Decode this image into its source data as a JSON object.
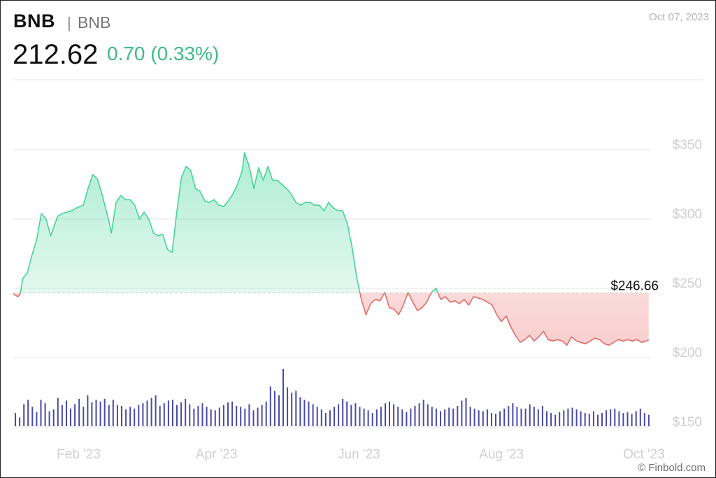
{
  "header": {
    "symbol": "BNB",
    "separator": "|",
    "name": "BNB",
    "date": "Oct 07, 2023",
    "price": "212.62",
    "change": "0.70 (0.33%)"
  },
  "credit": "© Finbold.com",
  "chart_data": {
    "type": "area",
    "reference": {
      "value": 246.66,
      "label": "$246.66"
    },
    "y_ticks": [
      {
        "value": 350,
        "label": "$350"
      },
      {
        "value": 300,
        "label": "$300"
      },
      {
        "value": 250,
        "label": "$250"
      },
      {
        "value": 200,
        "label": "$200"
      },
      {
        "value": 150,
        "label": "$150"
      }
    ],
    "x_ticks": [
      {
        "date": "2023-02-05",
        "label": "Feb '23"
      },
      {
        "date": "2023-04-05",
        "label": "Apr '23"
      },
      {
        "date": "2023-06-05",
        "label": "Jun '23"
      },
      {
        "date": "2023-08-05",
        "label": "Aug '23"
      },
      {
        "date": "2023-10-05",
        "label": "Oct '23"
      }
    ],
    "ylim": [
      145,
      365
    ],
    "xlim": [
      "2023-01-08",
      "2023-10-08"
    ],
    "grid": true,
    "colors": {
      "up_line": "#46d49a",
      "up_fill": "#3fd396",
      "down_line": "#e36b6b",
      "down_fill": "#f08080",
      "volume": "#4a4aa6",
      "grid": "#e6e6e6",
      "tick": "#cfcfcf"
    },
    "series": [
      {
        "values": [
          [
            "2023-01-08",
            246
          ],
          [
            "2023-01-10",
            244
          ],
          [
            "2023-01-11",
            246
          ],
          [
            "2023-01-12",
            257
          ],
          [
            "2023-01-14",
            261
          ],
          [
            "2023-01-16",
            274
          ],
          [
            "2023-01-18",
            285
          ],
          [
            "2023-01-20",
            304
          ],
          [
            "2023-01-22",
            300
          ],
          [
            "2023-01-24",
            288
          ],
          [
            "2023-01-27",
            302
          ],
          [
            "2023-01-29",
            304
          ],
          [
            "2023-02-02",
            306
          ],
          [
            "2023-02-04",
            308
          ],
          [
            "2023-02-07",
            310
          ],
          [
            "2023-02-09",
            322
          ],
          [
            "2023-02-11",
            332
          ],
          [
            "2023-02-13",
            329
          ],
          [
            "2023-02-15",
            318
          ],
          [
            "2023-02-18",
            298
          ],
          [
            "2023-02-19",
            290
          ],
          [
            "2023-02-21",
            312
          ],
          [
            "2023-02-23",
            317
          ],
          [
            "2023-02-25",
            314
          ],
          [
            "2023-02-27",
            314
          ],
          [
            "2023-03-01",
            310
          ],
          [
            "2023-03-03",
            300
          ],
          [
            "2023-03-05",
            305
          ],
          [
            "2023-03-07",
            300
          ],
          [
            "2023-03-09",
            290
          ],
          [
            "2023-03-11",
            288
          ],
          [
            "2023-03-13",
            289
          ],
          [
            "2023-03-15",
            278
          ],
          [
            "2023-03-17",
            276
          ],
          [
            "2023-03-19",
            305
          ],
          [
            "2023-03-21",
            330
          ],
          [
            "2023-03-23",
            338
          ],
          [
            "2023-03-25",
            335
          ],
          [
            "2023-03-27",
            322
          ],
          [
            "2023-03-29",
            320
          ],
          [
            "2023-03-31",
            313
          ],
          [
            "2023-04-02",
            312
          ],
          [
            "2023-04-04",
            314
          ],
          [
            "2023-04-06",
            310
          ],
          [
            "2023-04-08",
            309
          ],
          [
            "2023-04-10",
            313
          ],
          [
            "2023-04-12",
            318
          ],
          [
            "2023-04-14",
            325
          ],
          [
            "2023-04-16",
            335
          ],
          [
            "2023-04-17",
            348
          ],
          [
            "2023-04-19",
            338
          ],
          [
            "2023-04-21",
            322
          ],
          [
            "2023-04-23",
            337
          ],
          [
            "2023-04-25",
            328
          ],
          [
            "2023-04-27",
            338
          ],
          [
            "2023-04-29",
            328
          ],
          [
            "2023-05-01",
            328
          ],
          [
            "2023-05-03",
            325
          ],
          [
            "2023-05-05",
            322
          ],
          [
            "2023-05-07",
            318
          ],
          [
            "2023-05-09",
            312
          ],
          [
            "2023-05-11",
            310
          ],
          [
            "2023-05-13",
            312
          ],
          [
            "2023-05-15",
            312
          ],
          [
            "2023-05-17",
            310
          ],
          [
            "2023-05-19",
            310
          ],
          [
            "2023-05-21",
            306
          ],
          [
            "2023-05-23",
            312
          ],
          [
            "2023-05-25",
            308
          ],
          [
            "2023-05-27",
            306
          ],
          [
            "2023-05-29",
            306
          ],
          [
            "2023-05-31",
            297
          ],
          [
            "2023-06-02",
            280
          ],
          [
            "2023-06-04",
            258
          ],
          [
            "2023-06-06",
            242
          ],
          [
            "2023-06-08",
            231
          ],
          [
            "2023-06-10",
            239
          ],
          [
            "2023-06-12",
            242
          ],
          [
            "2023-06-14",
            241
          ],
          [
            "2023-06-16",
            247
          ],
          [
            "2023-06-18",
            236
          ],
          [
            "2023-06-20",
            235
          ],
          [
            "2023-06-22",
            231
          ],
          [
            "2023-06-24",
            238
          ],
          [
            "2023-06-26",
            247
          ],
          [
            "2023-06-28",
            240
          ],
          [
            "2023-06-30",
            234
          ],
          [
            "2023-07-02",
            236
          ],
          [
            "2023-07-04",
            240
          ],
          [
            "2023-07-06",
            247
          ],
          [
            "2023-07-08",
            250
          ],
          [
            "2023-07-10",
            242
          ],
          [
            "2023-07-12",
            244
          ],
          [
            "2023-07-14",
            240
          ],
          [
            "2023-07-16",
            241
          ],
          [
            "2023-07-18",
            239
          ],
          [
            "2023-07-20",
            242
          ],
          [
            "2023-07-22",
            238
          ],
          [
            "2023-07-24",
            244
          ],
          [
            "2023-07-26",
            243
          ],
          [
            "2023-07-28",
            242
          ],
          [
            "2023-07-30",
            240
          ],
          [
            "2023-08-01",
            238
          ],
          [
            "2023-08-03",
            231
          ],
          [
            "2023-08-05",
            226
          ],
          [
            "2023-08-07",
            230
          ],
          [
            "2023-08-09",
            222
          ],
          [
            "2023-08-11",
            216
          ],
          [
            "2023-08-13",
            211
          ],
          [
            "2023-08-15",
            213
          ],
          [
            "2023-08-17",
            216
          ],
          [
            "2023-08-19",
            212
          ],
          [
            "2023-08-21",
            215
          ],
          [
            "2023-08-23",
            219
          ],
          [
            "2023-08-25",
            213
          ],
          [
            "2023-08-27",
            212
          ],
          [
            "2023-08-29",
            213
          ],
          [
            "2023-08-31",
            212
          ],
          [
            "2023-09-02",
            209
          ],
          [
            "2023-09-04",
            215
          ],
          [
            "2023-09-06",
            212
          ],
          [
            "2023-09-08",
            211
          ],
          [
            "2023-09-10",
            210
          ],
          [
            "2023-09-12",
            212
          ],
          [
            "2023-09-14",
            214
          ],
          [
            "2023-09-16",
            213
          ],
          [
            "2023-09-18",
            210
          ],
          [
            "2023-09-20",
            209
          ],
          [
            "2023-09-22",
            211
          ],
          [
            "2023-09-24",
            213
          ],
          [
            "2023-09-26",
            212
          ],
          [
            "2023-09-28",
            213
          ],
          [
            "2023-09-30",
            212
          ],
          [
            "2023-10-02",
            213
          ],
          [
            "2023-10-04",
            211
          ],
          [
            "2023-10-06",
            212
          ],
          [
            "2023-10-07",
            212.62
          ]
        ],
        "volume": [
          30,
          20,
          50,
          60,
          44,
          32,
          60,
          52,
          34,
          38,
          64,
          48,
          58,
          40,
          50,
          62,
          44,
          70,
          54,
          60,
          56,
          62,
          48,
          60,
          48,
          46,
          38,
          44,
          40,
          48,
          52,
          58,
          64,
          70,
          46,
          52,
          58,
          60,
          48,
          54,
          62,
          50,
          40,
          46,
          52,
          44,
          38,
          36,
          42,
          48,
          54,
          56,
          46,
          44,
          40,
          50,
          36,
          42,
          48,
          56,
          90,
          80,
          70,
          130,
          88,
          76,
          80,
          66,
          60,
          56,
          50,
          44,
          38,
          30,
          36,
          44,
          50,
          62,
          56,
          48,
          52,
          44,
          40,
          36,
          30,
          38,
          44,
          52,
          56,
          50,
          44,
          38,
          32,
          40,
          46,
          52,
          60,
          50,
          44,
          40,
          34,
          38,
          42,
          40,
          46,
          58,
          64,
          44,
          40,
          36,
          34,
          38,
          30,
          28,
          34,
          40,
          46,
          52,
          44,
          40,
          40,
          50,
          44,
          38,
          46,
          34,
          30,
          26,
          32,
          36,
          40,
          42,
          38,
          34,
          30,
          28,
          34,
          26,
          30,
          36,
          38,
          40,
          34,
          30,
          32,
          28,
          34,
          40,
          30,
          26
        ]
      }
    ]
  }
}
